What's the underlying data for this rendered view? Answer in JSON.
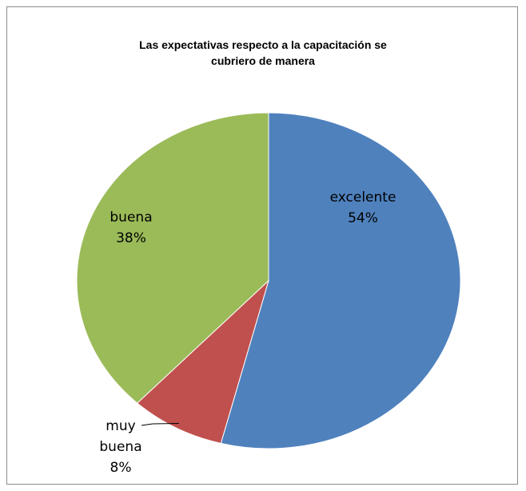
{
  "chart_data": {
    "type": "pie",
    "title_lines": [
      "Las expectativas respecto a la capacitación se",
      "cubriero de manera"
    ],
    "slices": [
      {
        "name": "excelente",
        "value": 54,
        "value_label": "54%",
        "color": "#4f81bd"
      },
      {
        "name": "muy buena",
        "value": 8,
        "value_label": "8%",
        "color": "#c0504d"
      },
      {
        "name": "buena",
        "value": 38,
        "value_label": "38%",
        "color": "#9bbb59"
      }
    ],
    "start_angle_deg": 0,
    "direction": "clockwise",
    "legend": "none"
  }
}
